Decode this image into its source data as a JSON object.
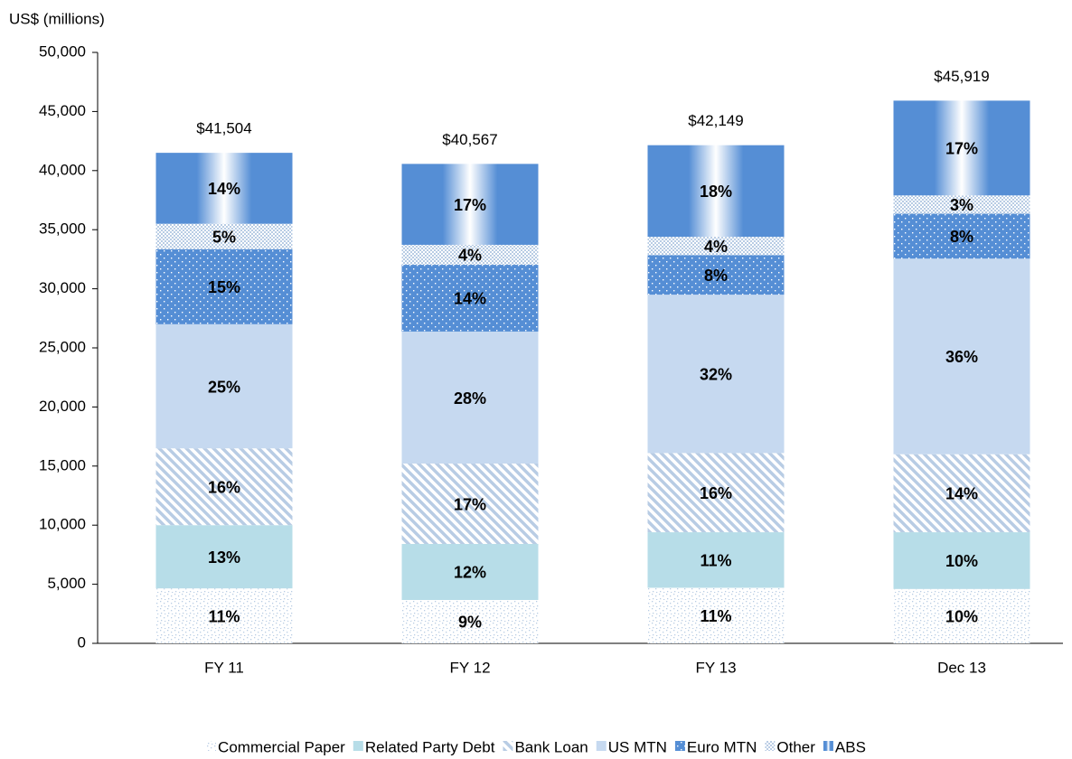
{
  "chart_data": {
    "type": "stacked_bar",
    "y_axis_label": "US$ (millions)",
    "categories": [
      "FY 11",
      "FY 12",
      "FY 13",
      "Dec 13"
    ],
    "ylim": [
      0,
      50000
    ],
    "yticks": [
      {
        "value": 0,
        "label": "0"
      },
      {
        "value": 5000,
        "label": "5,000"
      },
      {
        "value": 10000,
        "label": "10,000"
      },
      {
        "value": 15000,
        "label": "15,000"
      },
      {
        "value": 20000,
        "label": "20,000"
      },
      {
        "value": 25000,
        "label": "25,000"
      },
      {
        "value": 30000,
        "label": "30,000"
      },
      {
        "value": 35000,
        "label": "35,000"
      },
      {
        "value": 40000,
        "label": "40,000"
      },
      {
        "value": 45000,
        "label": "45,000"
      },
      {
        "value": 50000,
        "label": "50,000"
      }
    ],
    "totals": [
      41504,
      40567,
      42149,
      45919
    ],
    "total_labels": [
      "$41,504",
      "$40,567",
      "$42,149",
      "$45,919"
    ],
    "series": [
      {
        "name": "Commercial Paper",
        "color": "#b8cce4",
        "pattern": "dots",
        "values": [
          4650,
          3670,
          4700,
          4600
        ],
        "value_labels": [
          "11%",
          "9%",
          "11%",
          "10%"
        ]
      },
      {
        "name": "Related Party Debt",
        "color": "#b7dde8",
        "pattern": "solid",
        "values": [
          5350,
          4740,
          4700,
          4800
        ],
        "value_labels": [
          "13%",
          "12%",
          "11%",
          "10%"
        ]
      },
      {
        "name": "Bank Loan",
        "color": "#b8cce4",
        "pattern": "stripes",
        "values": [
          6500,
          6800,
          6700,
          6600
        ],
        "value_labels": [
          "16%",
          "17%",
          "16%",
          "14%"
        ]
      },
      {
        "name": "US MTN",
        "color": "#c6d9f0",
        "pattern": "solid",
        "values": [
          10500,
          11170,
          13400,
          16550
        ],
        "value_labels": [
          "25%",
          "28%",
          "32%",
          "36%"
        ]
      },
      {
        "name": "Euro MTN",
        "color": "#558ed5",
        "pattern": "whitedots",
        "values": [
          6350,
          5650,
          3350,
          3800
        ],
        "value_labels": [
          "15%",
          "14%",
          "8%",
          "8%"
        ]
      },
      {
        "name": "Other",
        "color": "#b8cce4",
        "pattern": "checker",
        "values": [
          2150,
          1690,
          1550,
          1550
        ],
        "value_labels": [
          "5%",
          "4%",
          "4%",
          "3%"
        ]
      },
      {
        "name": "ABS",
        "color": "#558ed5",
        "pattern": "gradient",
        "values": [
          6004,
          6847,
          7749,
          8019
        ],
        "value_labels": [
          "14%",
          "17%",
          "18%",
          "17%"
        ]
      }
    ]
  }
}
